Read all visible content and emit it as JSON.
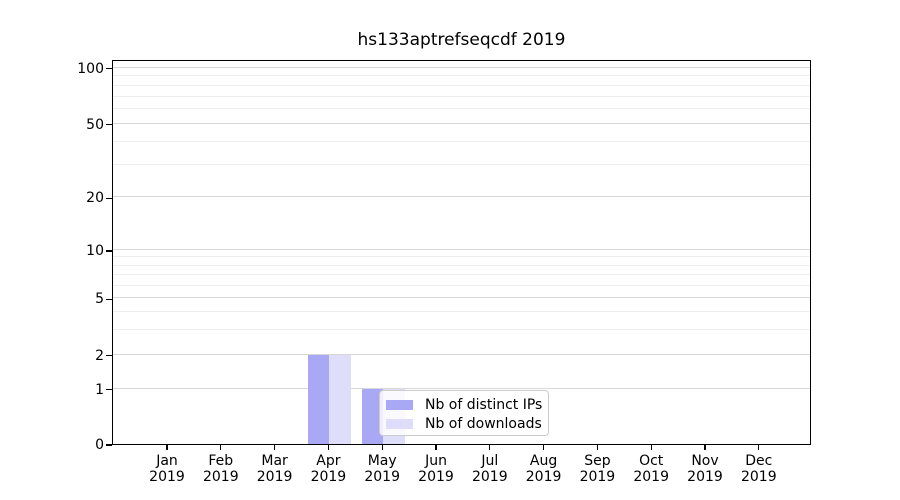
{
  "figure": {
    "title": "hs133aptrefseqcdf 2019",
    "background": "#ffffff"
  },
  "legend": {
    "items": [
      {
        "label": "Nb of distinct IPs",
        "color": "#a8a8f4"
      },
      {
        "label": "Nb of downloads",
        "color": "#dedefa"
      }
    ]
  },
  "chart_data": {
    "type": "bar",
    "title": "hs133aptrefseqcdf 2019",
    "categories": [
      {
        "month": "Jan",
        "year": "2019"
      },
      {
        "month": "Feb",
        "year": "2019"
      },
      {
        "month": "Mar",
        "year": "2019"
      },
      {
        "month": "Apr",
        "year": "2019"
      },
      {
        "month": "May",
        "year": "2019"
      },
      {
        "month": "Jun",
        "year": "2019"
      },
      {
        "month": "Jul",
        "year": "2019"
      },
      {
        "month": "Aug",
        "year": "2019"
      },
      {
        "month": "Sep",
        "year": "2019"
      },
      {
        "month": "Oct",
        "year": "2019"
      },
      {
        "month": "Nov",
        "year": "2019"
      },
      {
        "month": "Dec",
        "year": "2019"
      }
    ],
    "series": [
      {
        "name": "Nb of distinct IPs",
        "color": "#a8a8f4",
        "values": [
          0,
          0,
          0,
          2,
          1,
          0,
          0,
          0,
          0,
          0,
          0,
          0
        ]
      },
      {
        "name": "Nb of downloads",
        "color": "#dedefa",
        "values": [
          0,
          0,
          0,
          2,
          1,
          0,
          0,
          0,
          0,
          0,
          0,
          0
        ]
      }
    ],
    "yaxis": {
      "scale": "symlog-like",
      "ticks": [
        0,
        1,
        2,
        5,
        10,
        20,
        50,
        100
      ],
      "minor_gridlines": [
        3,
        4,
        6,
        7,
        8,
        9,
        30,
        40,
        60,
        70,
        80,
        90
      ],
      "ylim": [
        0,
        112
      ]
    },
    "grid": {
      "on": true,
      "which": "both",
      "major_color": "#d8d8d8",
      "minor_color": "#eeeeee"
    },
    "legend_position": "lower center inside plot",
    "axis_color": "#000000"
  }
}
